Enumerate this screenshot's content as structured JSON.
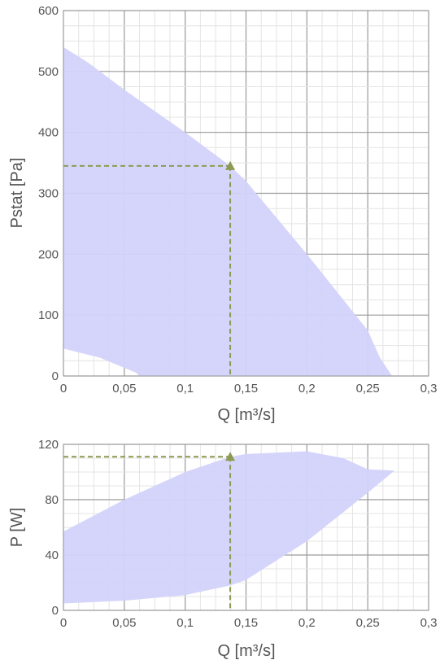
{
  "chart_data": [
    {
      "type": "area",
      "xlabel": "Q [m³/s]",
      "ylabel": "Pstat [Pa]",
      "xlim": [
        0,
        0.3
      ],
      "ylim": [
        0,
        600
      ],
      "x_ticks": [
        "0",
        "0,05",
        "0,1",
        "0,15",
        "0,2",
        "0,25",
        "0,3"
      ],
      "y_ticks": [
        "0",
        "100",
        "200",
        "300",
        "400",
        "500",
        "600"
      ],
      "grid": true,
      "fill_color": "#d3d3fb",
      "guide_color": "#8c9a52",
      "envelope_upper": [
        [
          0,
          540
        ],
        [
          0.02,
          515
        ],
        [
          0.05,
          470
        ],
        [
          0.1,
          400
        ],
        [
          0.137,
          345
        ],
        [
          0.15,
          320
        ],
        [
          0.2,
          200
        ],
        [
          0.25,
          75
        ],
        [
          0.26,
          30
        ],
        [
          0.27,
          0
        ]
      ],
      "envelope_lower": [
        [
          0,
          45
        ],
        [
          0.03,
          30
        ],
        [
          0.06,
          5
        ],
        [
          0.062,
          0
        ]
      ],
      "operating_point": {
        "x": 0.137,
        "y": 345
      }
    },
    {
      "type": "area",
      "xlabel": "Q [m³/s]",
      "ylabel": "P [W]",
      "xlim": [
        0,
        0.3
      ],
      "ylim": [
        0,
        120
      ],
      "x_ticks": [
        "0",
        "0,05",
        "0,1",
        "0,15",
        "0,2",
        "0,25",
        "0,3"
      ],
      "y_ticks": [
        "0",
        "40",
        "80",
        "120"
      ],
      "grid": true,
      "fill_color": "#d3d3fb",
      "guide_color": "#8c9a52",
      "envelope_upper": [
        [
          0,
          57
        ],
        [
          0.05,
          80
        ],
        [
          0.1,
          100
        ],
        [
          0.137,
          111
        ],
        [
          0.15,
          113
        ],
        [
          0.2,
          115
        ],
        [
          0.23,
          110
        ],
        [
          0.25,
          102
        ],
        [
          0.272,
          101
        ]
      ],
      "envelope_lower": [
        [
          0,
          5
        ],
        [
          0.05,
          7
        ],
        [
          0.1,
          11
        ],
        [
          0.137,
          18
        ],
        [
          0.15,
          22
        ],
        [
          0.2,
          50
        ],
        [
          0.25,
          85
        ],
        [
          0.272,
          101
        ]
      ],
      "operating_point": {
        "x": 0.137,
        "y": 111
      }
    }
  ]
}
